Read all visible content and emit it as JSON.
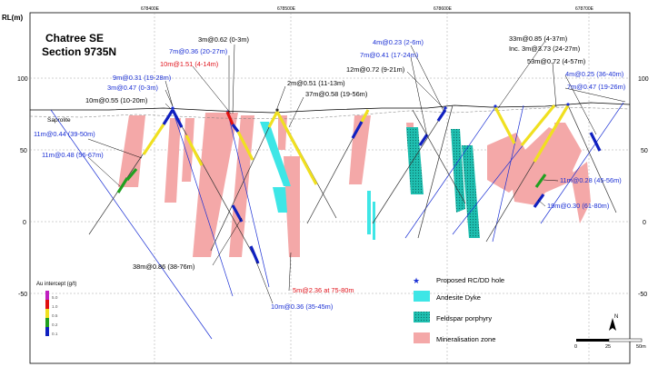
{
  "title": {
    "line1": "Chatree SE",
    "line2": "Section 9735N"
  },
  "axis": {
    "rl_label": "RL(m)",
    "left_ticks": [
      "100",
      "50",
      "0",
      "-50"
    ],
    "right_ticks": [
      "100",
      "50",
      "0",
      "-50"
    ],
    "top_ticks": [
      "678400E",
      "678500E",
      "678600E",
      "678700E"
    ]
  },
  "surface_label": "Saprolite",
  "intercepts": [
    {
      "text": "3m@0.62 (0-3m)",
      "color": "black"
    },
    {
      "text": "7m@0.36 (20-27m)",
      "color": "blue"
    },
    {
      "text": "10m@1.51 (4-14m)",
      "color": "red"
    },
    {
      "text": "9m@0.31 (19-28m)",
      "color": "blue"
    },
    {
      "text": "3m@0.47 (0-3m)",
      "color": "blue"
    },
    {
      "text": "10m@0.55 (10-20m)",
      "color": "black"
    },
    {
      "text": "2m@0.51 (11-13m)",
      "color": "black"
    },
    {
      "text": "37m@0.58 (19-56m)",
      "color": "black"
    },
    {
      "text": "11m@0.44 (39-50m)",
      "color": "blue"
    },
    {
      "text": "11m@0.48 (56-67m)",
      "color": "blue"
    },
    {
      "text": "4m@0.23 (2-6m)",
      "color": "blue"
    },
    {
      "text": "7m@0.41 (17-24m)",
      "color": "blue"
    },
    {
      "text": "12m@0.72 (9-21m)",
      "color": "black"
    },
    {
      "text": "33m@0.85 (4-37m)",
      "color": "black"
    },
    {
      "text": "Inc. 3m@3.73 (24-27m)",
      "color": "black"
    },
    {
      "text": "53m@0.72 (4-57m)",
      "color": "black"
    },
    {
      "text": "4m@0.25 (36-40m)",
      "color": "blue"
    },
    {
      "text": "7m@0.47 (19-26m)",
      "color": "blue"
    },
    {
      "text": "11m@0.28 (45-56m)",
      "color": "blue"
    },
    {
      "text": "19m@0.30 (61-80m)",
      "color": "blue"
    },
    {
      "text": "38m@0.86 (38-76m)",
      "color": "black"
    },
    {
      "text": "5m@2.36 at 75-80m",
      "color": "red"
    },
    {
      "text": "10m@0.36 (35-45m)",
      "color": "blue"
    }
  ],
  "grade_legend": {
    "title": "Au intercept (g/t)",
    "values": [
      "5.0",
      "1.0",
      "0.5",
      "0.2",
      "0.1"
    ],
    "colors": [
      "#c020c0",
      "#e01010",
      "#f0e020",
      "#20a020",
      "#1020c0"
    ]
  },
  "legend": [
    {
      "label": "Proposed RC/DD hole",
      "symbol": "star"
    },
    {
      "label": "Andesite Dyke",
      "color": "#3ee6e6"
    },
    {
      "label": "Feldspar porphyry",
      "color": "#1fbfb0"
    },
    {
      "label": "Mineralisation zone",
      "color": "#f4a8a8"
    }
  ],
  "scale": {
    "labels": [
      "0",
      "25",
      "50m"
    ]
  },
  "north_label": "N"
}
